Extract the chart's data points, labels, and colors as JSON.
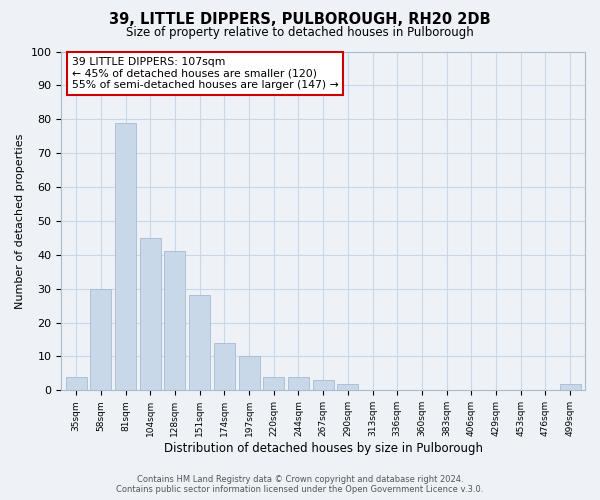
{
  "title": "39, LITTLE DIPPERS, PULBOROUGH, RH20 2DB",
  "subtitle": "Size of property relative to detached houses in Pulborough",
  "xlabel": "Distribution of detached houses by size in Pulborough",
  "ylabel": "Number of detached properties",
  "bar_labels": [
    "35sqm",
    "58sqm",
    "81sqm",
    "104sqm",
    "128sqm",
    "151sqm",
    "174sqm",
    "197sqm",
    "220sqm",
    "244sqm",
    "267sqm",
    "290sqm",
    "313sqm",
    "336sqm",
    "360sqm",
    "383sqm",
    "406sqm",
    "429sqm",
    "453sqm",
    "476sqm",
    "499sqm"
  ],
  "bar_values": [
    4,
    30,
    79,
    45,
    41,
    28,
    14,
    10,
    4,
    4,
    3,
    2,
    0,
    0,
    0,
    0,
    0,
    0,
    0,
    0,
    2
  ],
  "bar_color": "#c8d8e8",
  "bar_edge_color": "#9ab4cc",
  "ylim": [
    0,
    100
  ],
  "yticks": [
    0,
    10,
    20,
    30,
    40,
    50,
    60,
    70,
    80,
    90,
    100
  ],
  "annotation_box_text": [
    "39 LITTLE DIPPERS: 107sqm",
    "← 45% of detached houses are smaller (120)",
    "55% of semi-detached houses are larger (147) →"
  ],
  "annotation_box_color": "#ffffff",
  "annotation_box_edge_color": "#cc0000",
  "footer_line1": "Contains HM Land Registry data © Crown copyright and database right 2024.",
  "footer_line2": "Contains public sector information licensed under the Open Government Licence v.3.0.",
  "grid_color": "#c8d8e8",
  "background_color": "#eef2f7"
}
